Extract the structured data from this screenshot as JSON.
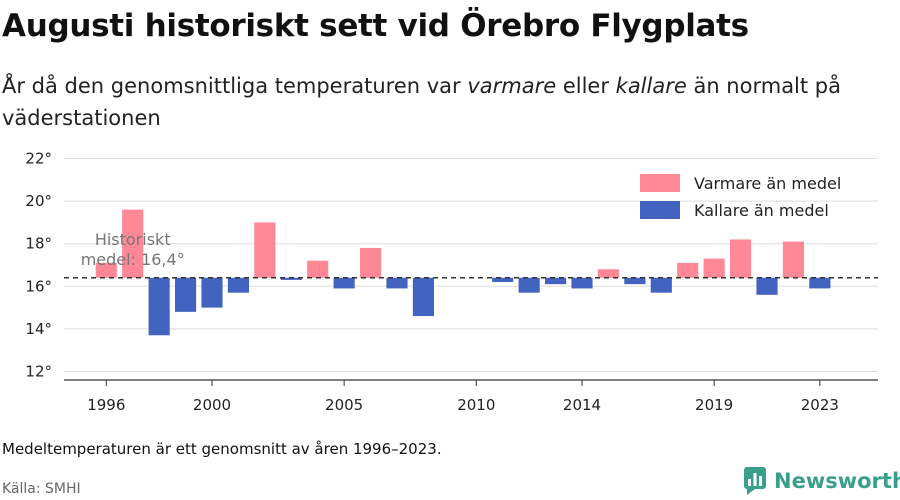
{
  "title": "Augusti historiskt sett vid Örebro Flygplats",
  "subtitle": {
    "part1": "År då den genomsnittliga temperaturen var ",
    "warm_word": "varmare",
    "part2": " eller ",
    "cold_word": "kallare",
    "part3": " än normalt på väderstationen"
  },
  "footnote": "Medeltemperaturen är ett genomsnitt av åren 1996–2023.",
  "source": "Källa: SMHI",
  "brand": "Newsworthy",
  "colors": {
    "warm": "#ff8896",
    "cold": "#4363c1",
    "grid": "#dddddd",
    "mean_line": "#333333",
    "brand": "#3a9e8c"
  },
  "chart_data": {
    "type": "bar",
    "baseline": 16.4,
    "baseline_label_lines": [
      "Historiskt",
      "medel: 16,4°"
    ],
    "ylim": [
      11.6,
      22.4
    ],
    "yticks": [
      12,
      14,
      16,
      18,
      20,
      22
    ],
    "ytick_labels": [
      "12°",
      "14°",
      "16°",
      "18°",
      "20°",
      "22°"
    ],
    "xlim": [
      1994.4,
      2025.2
    ],
    "xticks": [
      1996,
      2000,
      2005,
      2010,
      2014,
      2019,
      2023
    ],
    "xtick_labels": [
      "1996",
      "2000",
      "2005",
      "2010",
      "2014",
      "2019",
      "2023"
    ],
    "legend": {
      "placement": "top-right",
      "warm_label": "Varmare än medel",
      "cold_label": "Kallare än medel"
    },
    "years": [
      1996,
      1997,
      1998,
      1999,
      2000,
      2001,
      2002,
      2003,
      2004,
      2005,
      2006,
      2007,
      2008,
      2009,
      2010,
      2011,
      2012,
      2013,
      2014,
      2015,
      2016,
      2017,
      2018,
      2019,
      2020,
      2021,
      2022,
      2023
    ],
    "values": [
      17.1,
      19.6,
      13.7,
      14.8,
      15.0,
      15.7,
      19.0,
      16.3,
      17.2,
      15.9,
      17.8,
      15.9,
      14.6,
      null,
      null,
      16.2,
      15.7,
      16.1,
      15.9,
      16.8,
      16.1,
      15.7,
      17.1,
      17.3,
      18.2,
      15.6,
      18.1,
      15.9
    ]
  }
}
